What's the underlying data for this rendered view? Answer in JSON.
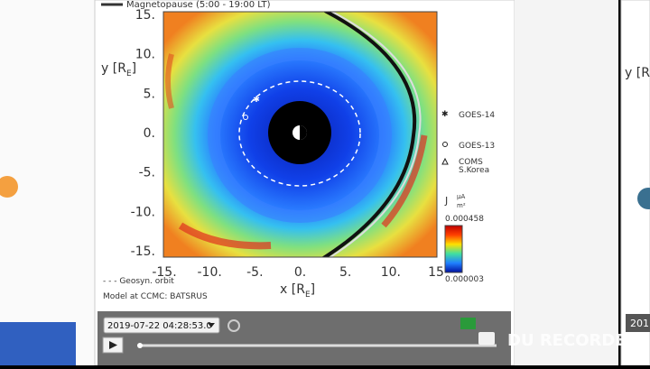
{
  "plot": {
    "title": "Magnetopause (5:00 - 19:00 LT)",
    "y_label": "y [R",
    "y_label_sub": "E",
    "y_label_end": "]",
    "x_label": "x [R",
    "x_label_sub": "E",
    "x_label_end": "]",
    "yticks": [
      "15.",
      "10.",
      "5.",
      "0.",
      "-5.",
      "-10.",
      "-15."
    ],
    "xticks": [
      "-15.",
      "-10.",
      "-5.",
      "0.",
      "5.",
      "10.",
      "15"
    ],
    "legend": [
      "GOES-14",
      "GOES-13",
      "COMS",
      "S.Korea"
    ],
    "colorbar": {
      "label": "J",
      "unit_num": "μA",
      "unit_den": "m²",
      "max": "0.000458",
      "min": "0.000003"
    },
    "orbit_note": "- - - Geosyn. orbit",
    "model_note": "Model at CCMC: BATSRUS"
  },
  "controls": {
    "datetime": "2019-07-22 04:28:53.0"
  },
  "overlay": {
    "recorder": "DU RECORDER"
  },
  "right_panel": {
    "y_label": "y [R",
    "datetime": "201"
  }
}
